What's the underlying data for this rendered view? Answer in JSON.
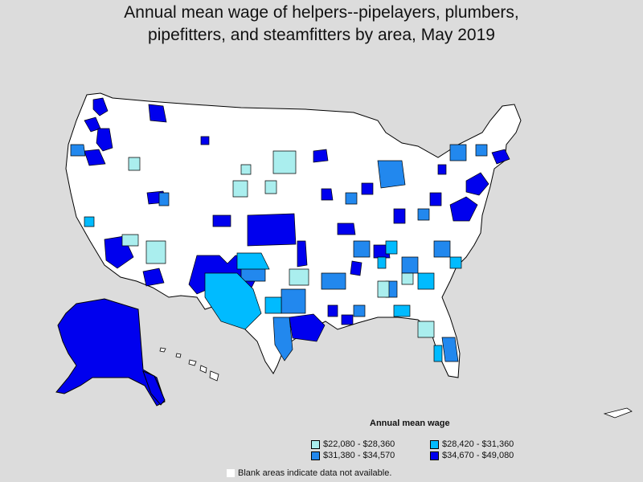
{
  "title_line1": "Annual mean wage of helpers--pipelayers, plumbers,",
  "title_line2": "pipefitters, and steamfitters by area, May 2019",
  "legend": {
    "title": "Annual mean wage",
    "items": [
      {
        "label": "$22,080 - $28,360",
        "color": "#aaeeee"
      },
      {
        "label": "$28,420 - $31,360",
        "color": "#00bbff"
      },
      {
        "label": "$31,380 - $34,570",
        "color": "#2288ee"
      },
      {
        "label": "$34,670 - $49,080",
        "color": "#0000ee"
      }
    ]
  },
  "note": "Blank areas indicate data not available.",
  "colors": {
    "background": "#dcdcdc",
    "no_data": "#ffffff",
    "border": "#000000"
  }
}
